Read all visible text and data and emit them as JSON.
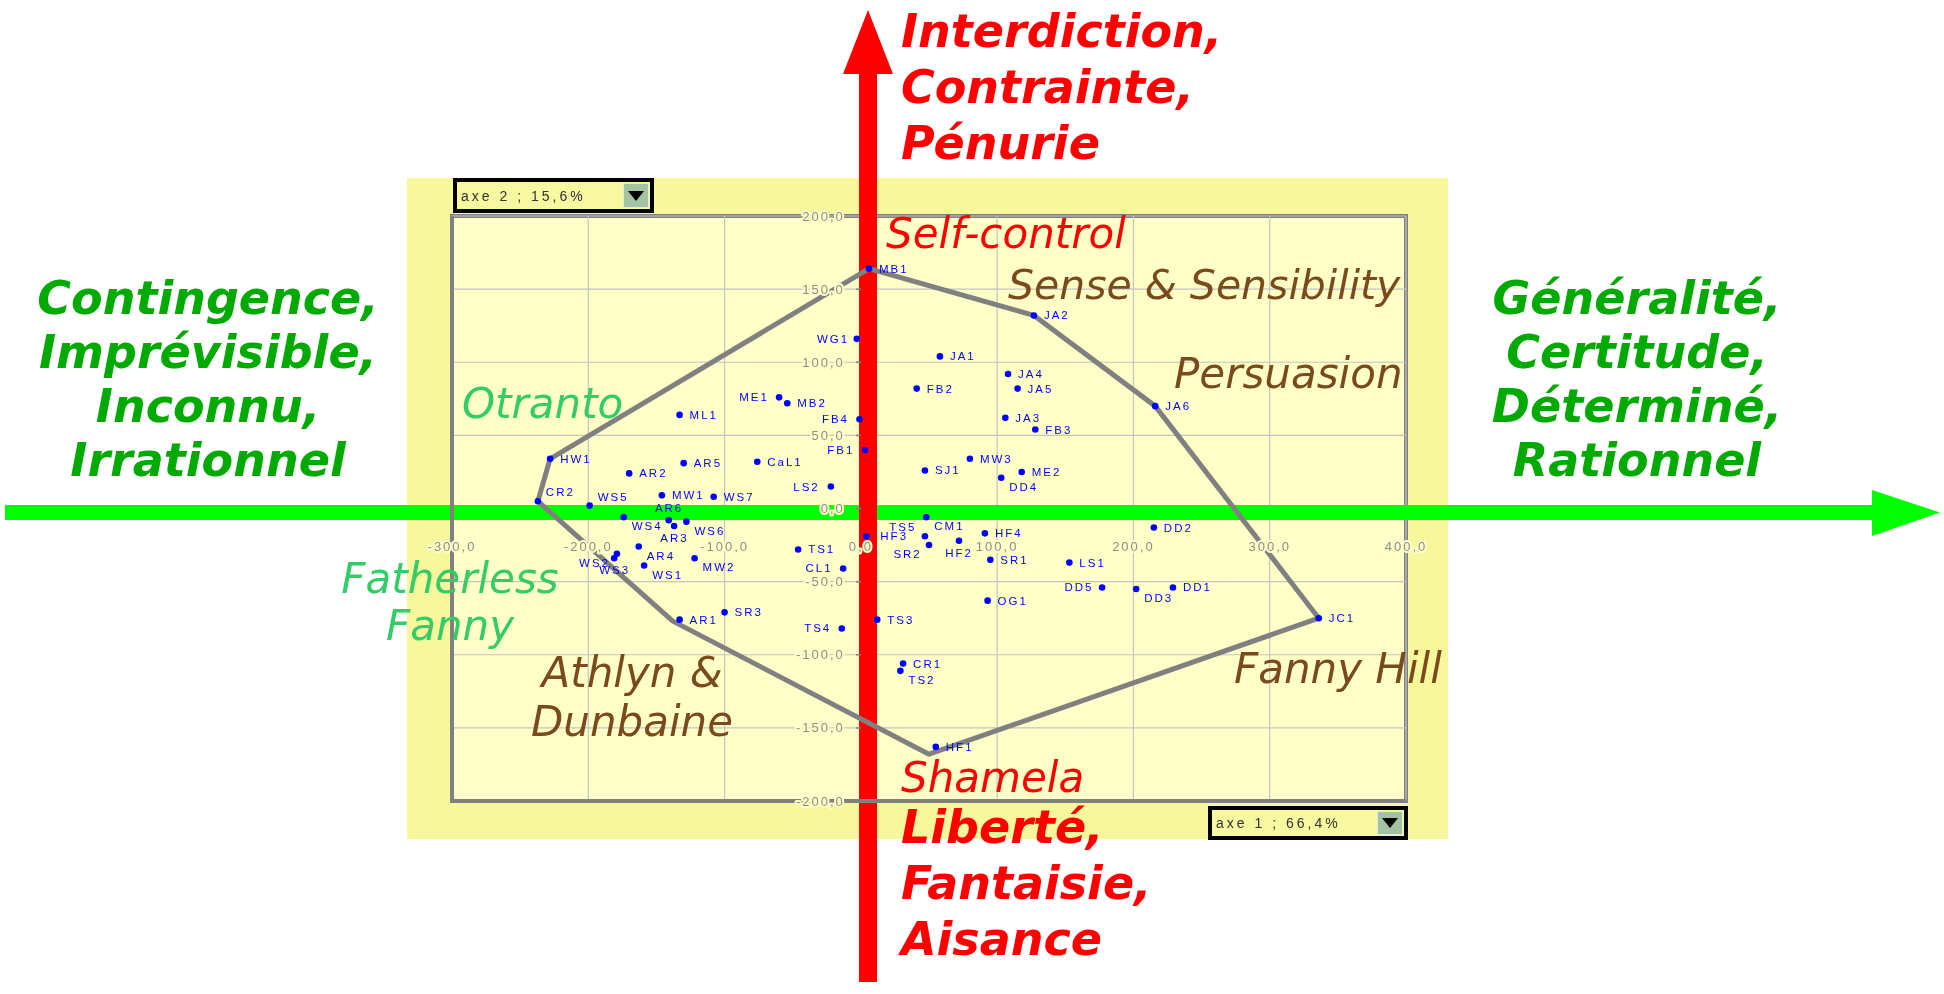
{
  "chart_data": {
    "type": "scatter",
    "xlabel": "axe 1 ; 66,4%",
    "ylabel": "axe 2 ; 15,6%",
    "annotations": [
      "Interdiction,\nContrainte,\nPénurie",
      "Contingence,\nImprévisible,\nInconnu,\nIrrationnel",
      "Généralité,\nCertitude,\nDéterminé,\nRationnel",
      "Self-control",
      "Sense & Sensibility",
      "Persuasion",
      "Otranto",
      "Fatherless\nFanny",
      "Athlyn &\nDunbaine",
      "Fanny Hill",
      "Shamela",
      "Liberté,\nFantaisie,\nAisance"
    ],
    "series": [
      {
        "color": "#0000ff",
        "x": [
          6,
          -3,
          127,
          58,
          108,
          115,
          41,
          -60,
          -54,
          216,
          -133,
          106,
          -1,
          128,
          3,
          -228,
          80,
          -130,
          -76,
          47,
          118,
          -170,
          103,
          -22,
          -146,
          -108,
          -237,
          -199,
          48,
          -174,
          -137,
          -141,
          -128,
          4,
          47,
          91,
          215,
          72,
          50,
          -163,
          -46,
          -179,
          -181,
          -122,
          95,
          153,
          -159,
          -13,
          177,
          229,
          202,
          93,
          -133,
          -100,
          336,
          12,
          -14,
          31,
          29,
          55
        ],
        "values": [
          164,
          116,
          132,
          104,
          92,
          82,
          82,
          76,
          72,
          70,
          64,
          62,
          61,
          54,
          40,
          34,
          34,
          31,
          32,
          26,
          25,
          24,
          21,
          15,
          9,
          8,
          5,
          2,
          -6,
          -6,
          -12,
          -8,
          -9,
          -19,
          -19,
          -17,
          -13,
          -22,
          -25,
          -26,
          -28,
          -31,
          -34,
          -34,
          -35,
          -37,
          -39,
          -41,
          -54,
          -54,
          -55,
          -63,
          -76,
          -71,
          -75,
          -76,
          -82,
          -106,
          -111,
          -163
        ],
        "value_labels": [
          "MB1",
          "WG1",
          "JA2",
          "JA1",
          "JA4",
          "JA5",
          "FB2",
          "ME1",
          "MB2",
          "JA6",
          "ML1",
          "JA3",
          "FB4",
          "FB3",
          "FB1",
          "HW1",
          "MW3",
          "AR5",
          "CaL1",
          "SJ1",
          "ME2",
          "AR2",
          "DD4",
          "LS2",
          "MW1",
          "WS7",
          "CR2",
          "WS5",
          "CM1",
          "WS4",
          "AR3",
          "AR6",
          "WS6",
          "HF3",
          "TS5",
          "HF4",
          "DD2",
          "HF2",
          "SR2",
          "AR4",
          "TS1",
          "WS2",
          "WS3",
          "MW2",
          "SR1",
          "LS1",
          "WS1",
          "CL1",
          "DD5",
          "DD1",
          "DD3",
          "OG1",
          "AR1",
          "SR3",
          "JC1",
          "TS3",
          "TS4",
          "CR1",
          "TS2",
          "HF1"
        ]
      },
      {
        "type": "line",
        "color": "#808080",
        "marker": "none",
        "x": [
          -237,
          -228,
          6,
          127,
          216,
          336
        ],
        "values": [
          5,
          34,
          164,
          132,
          70,
          -75
        ]
      },
      {
        "type": "line",
        "color": "#808080",
        "marker": "none",
        "x": [
          -237,
          -138,
          50,
          336
        ],
        "values": [
          5,
          -77,
          -168,
          -75
        ]
      }
    ],
    "xlim": [
      -300,
      400
    ],
    "ylim": [
      -200,
      200
    ],
    "xticks": [
      {
        "value": -300,
        "label": "-300,0"
      },
      {
        "value": -200,
        "label": "-200,0"
      },
      {
        "value": -100,
        "label": "-100,0"
      },
      {
        "value": 0,
        "label": "0,0"
      },
      {
        "value": 100,
        "label": "100,0"
      },
      {
        "value": 200,
        "label": "200,0"
      },
      {
        "value": 300,
        "label": "300,0"
      },
      {
        "value": 400,
        "label": "400,0"
      }
    ],
    "yticks": [
      {
        "value": -200,
        "label": "-200,0"
      },
      {
        "value": -150,
        "label": "-150,0"
      },
      {
        "value": -100,
        "label": "-100,0"
      },
      {
        "value": -50,
        "label": "-50,0"
      },
      {
        "value": 0,
        "label": "0,0"
      },
      {
        "value": 50,
        "label": "50,0"
      },
      {
        "value": 100,
        "label": "100,0"
      },
      {
        "value": 150,
        "label": "150,0"
      },
      {
        "value": 200,
        "label": "200,0"
      }
    ],
    "grid": true,
    "marker": "circle"
  }
}
